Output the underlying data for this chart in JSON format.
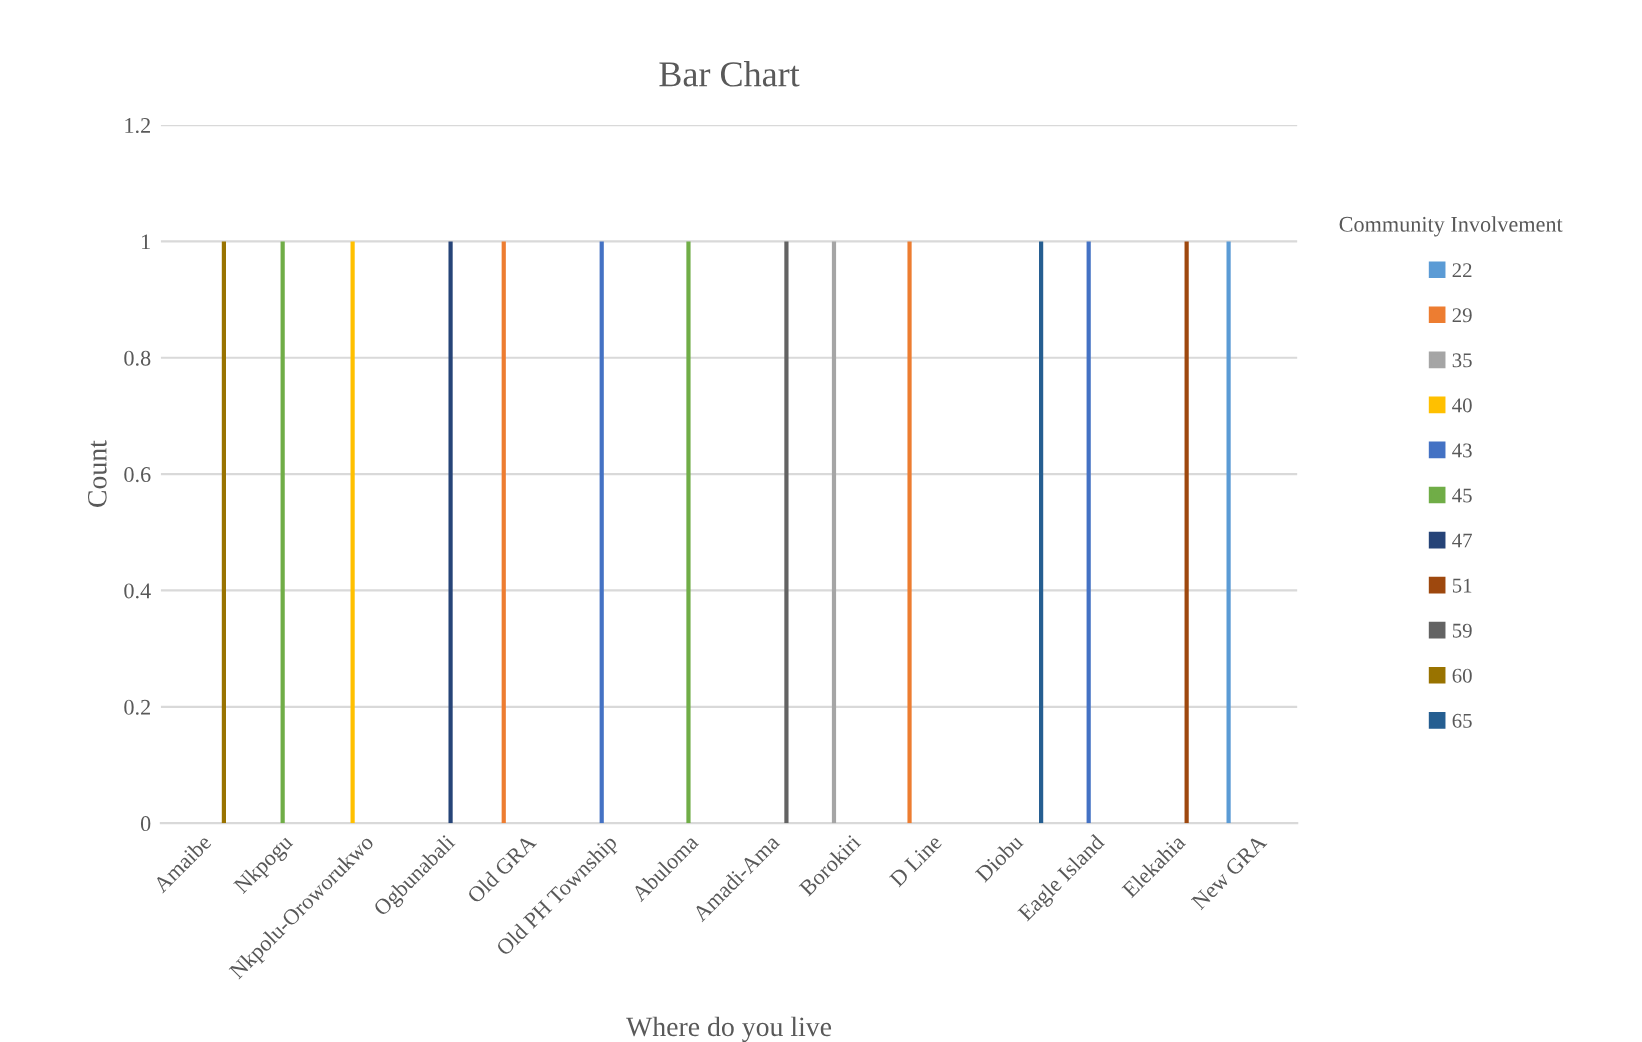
{
  "chart_data": {
    "type": "bar",
    "title": "Bar Chart",
    "xlabel": "Where do you live",
    "ylabel": "Count",
    "legend_title": "Community Involvement",
    "categories": [
      "Amaibe",
      "Nkpogu",
      "Nkpolu-Oroworukwo",
      "Ogbunabali",
      "Old GRA",
      "Old PH Township",
      "Abuloma",
      "Amadi-Ama",
      "Borokiri",
      "D Line",
      "Diobu",
      "Eagle Island",
      "Elekahia",
      "New GRA"
    ],
    "series": [
      {
        "name": "22",
        "color": "#5b9bd5",
        "values": [
          null,
          null,
          null,
          null,
          null,
          null,
          null,
          null,
          null,
          null,
          null,
          null,
          null,
          1
        ]
      },
      {
        "name": "29",
        "color": "#ed7d31",
        "values": [
          null,
          null,
          null,
          null,
          1,
          null,
          null,
          null,
          null,
          1,
          null,
          null,
          null,
          null
        ]
      },
      {
        "name": "35",
        "color": "#a5a5a5",
        "values": [
          null,
          null,
          null,
          null,
          null,
          null,
          null,
          null,
          1,
          null,
          null,
          null,
          null,
          null
        ]
      },
      {
        "name": "40",
        "color": "#ffc000",
        "values": [
          null,
          null,
          1,
          null,
          null,
          null,
          null,
          null,
          null,
          null,
          null,
          null,
          null,
          null
        ]
      },
      {
        "name": "43",
        "color": "#4472c4",
        "values": [
          null,
          null,
          null,
          null,
          null,
          1,
          null,
          null,
          null,
          null,
          null,
          1,
          null,
          null
        ]
      },
      {
        "name": "45",
        "color": "#70ad47",
        "values": [
          null,
          1,
          null,
          null,
          null,
          null,
          1,
          null,
          null,
          null,
          null,
          null,
          null,
          null
        ]
      },
      {
        "name": "47",
        "color": "#264478",
        "values": [
          null,
          null,
          null,
          1,
          null,
          null,
          null,
          null,
          null,
          null,
          null,
          null,
          null,
          null
        ]
      },
      {
        "name": "51",
        "color": "#9e480e",
        "values": [
          null,
          null,
          null,
          null,
          null,
          null,
          null,
          null,
          null,
          null,
          null,
          null,
          1,
          null
        ]
      },
      {
        "name": "59",
        "color": "#636363",
        "values": [
          null,
          null,
          null,
          null,
          null,
          null,
          null,
          1,
          null,
          null,
          null,
          null,
          null,
          null
        ]
      },
      {
        "name": "60",
        "color": "#997300",
        "values": [
          1,
          null,
          null,
          null,
          null,
          null,
          null,
          null,
          null,
          null,
          null,
          null,
          null,
          null
        ]
      },
      {
        "name": "65",
        "color": "#255e91",
        "values": [
          null,
          null,
          null,
          null,
          null,
          null,
          null,
          null,
          null,
          null,
          1,
          null,
          null,
          null
        ]
      }
    ],
    "ylim": [
      0,
      1.2
    ],
    "yticks": [
      0,
      0.2,
      0.4,
      0.6,
      0.8,
      1,
      1.2
    ],
    "grid": "y",
    "legend": "right"
  }
}
